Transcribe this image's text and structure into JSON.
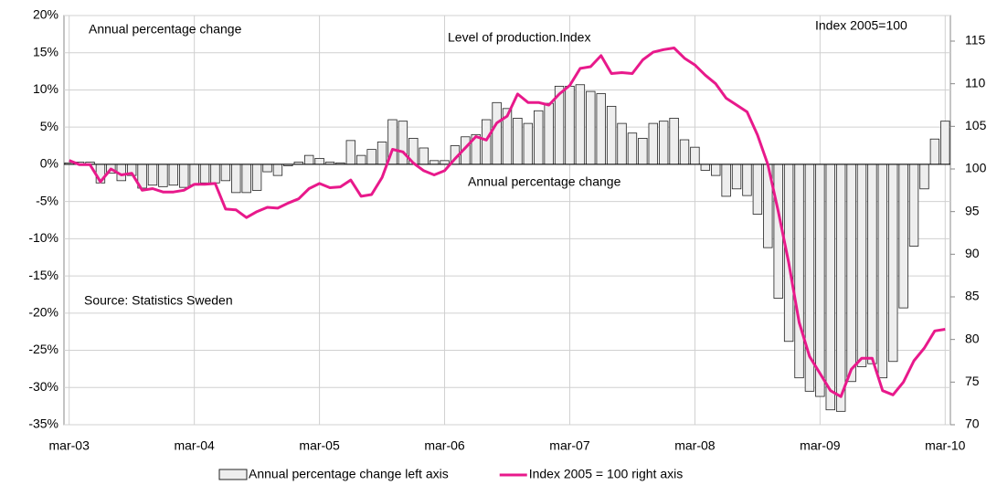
{
  "chart_data": {
    "type": "bar_line",
    "annotations": [
      "Annual percentage change",
      "Level of production.Index",
      "Index 2005=100",
      "Annual percentage change",
      "Source: Statistics Sweden"
    ],
    "categories": [
      "mar-03",
      null,
      null,
      null,
      null,
      null,
      null,
      null,
      null,
      null,
      null,
      null,
      "mar-04",
      null,
      null,
      null,
      null,
      null,
      null,
      null,
      null,
      null,
      null,
      null,
      "mar-05",
      null,
      null,
      null,
      null,
      null,
      null,
      null,
      null,
      null,
      null,
      null,
      "mar-06",
      null,
      null,
      null,
      null,
      null,
      null,
      null,
      null,
      null,
      null,
      null,
      "mar-07",
      null,
      null,
      null,
      null,
      null,
      null,
      null,
      null,
      null,
      null,
      null,
      "mar-08",
      null,
      null,
      null,
      null,
      null,
      null,
      null,
      null,
      null,
      null,
      null,
      "mar-09",
      null,
      null,
      null,
      null,
      null,
      null,
      null,
      null,
      null,
      null,
      null,
      "mar-10"
    ],
    "series": [
      {
        "name": "Annual percentage change left axis",
        "kind": "bar",
        "color": "#eeeeee",
        "axis": "y",
        "values": [
          0.2,
          0.3,
          0.3,
          -2.5,
          -1.2,
          -2.2,
          -1.5,
          -3.2,
          -2.8,
          -3,
          -2.8,
          -3.1,
          -2.8,
          -2.5,
          -2.5,
          -2.2,
          -3.8,
          -3.8,
          -3.5,
          -1,
          -1.5,
          -0.2,
          0.3,
          1.2,
          0.8,
          0.3,
          0.2,
          3.2,
          1.2,
          2,
          3,
          6,
          5.8,
          3.5,
          2.2,
          0.5,
          0.5,
          2.5,
          3.7,
          4,
          6,
          8.3,
          7.5,
          6.2,
          5.5,
          7.2,
          8.2,
          10.5,
          10.5,
          10.7,
          9.8,
          9.5,
          7.8,
          5.5,
          4.2,
          3.5,
          5.5,
          5.8,
          6.2,
          3.3,
          2.3,
          -0.8,
          -1.5,
          -4.3,
          -3.3,
          -4.2,
          -6.7,
          -11.2,
          -18,
          -23.8,
          -28.7,
          -30.5,
          -31.2,
          -33,
          -33.2,
          -29.2,
          -27.2,
          -26.8,
          -28.7,
          -26.5,
          -19.3,
          -11,
          -3.3,
          3.4,
          5.8
        ]
      },
      {
        "name": "Index 2005 = 100 right axis",
        "kind": "line",
        "color": "#e8198b",
        "axis": "y2",
        "values": [
          101,
          100.5,
          100.5,
          98.5,
          100,
          99.3,
          99.5,
          97.5,
          97.7,
          97.3,
          97.3,
          97.5,
          98.2,
          98.2,
          98.3,
          95.3,
          95.2,
          94.3,
          95,
          95.5,
          95.4,
          96,
          96.5,
          97.7,
          98.3,
          97.8,
          97.9,
          98.7,
          96.8,
          97,
          99,
          102.3,
          102,
          100.7,
          99.8,
          99.3,
          99.8,
          101.2,
          102.5,
          103.8,
          103.4,
          105.4,
          106.2,
          108.8,
          107.8,
          107.8,
          107.5,
          108.8,
          109.8,
          111.8,
          112,
          113.3,
          111.2,
          111.3,
          111.2,
          112.8,
          113.7,
          114,
          114.2,
          113,
          112.2,
          111,
          110,
          108.3,
          107.5,
          106.7,
          104,
          100.5,
          95,
          89,
          82,
          78,
          76,
          74,
          73.3,
          76.5,
          77.8,
          77.8,
          74,
          73.5,
          75,
          77.5,
          79,
          81,
          81.2
        ]
      }
    ],
    "ylim": [
      -35,
      20
    ],
    "yticks": [
      {
        "value": -35,
        "label": "-35%"
      },
      {
        "value": -30,
        "label": "-30%"
      },
      {
        "value": -25,
        "label": "-25%"
      },
      {
        "value": -20,
        "label": "-20%"
      },
      {
        "value": -15,
        "label": "-15%"
      },
      {
        "value": -10,
        "label": "-10%"
      },
      {
        "value": -5,
        "label": "-5%"
      },
      {
        "value": 0,
        "label": "0%"
      },
      {
        "value": 5,
        "label": "5%"
      },
      {
        "value": 10,
        "label": "10%"
      },
      {
        "value": 15,
        "label": "15%"
      },
      {
        "value": 20,
        "label": "20%"
      }
    ],
    "y2lim": [
      70,
      118
    ],
    "y2ticks": [
      70,
      75,
      80,
      85,
      90,
      95,
      100,
      105,
      110,
      115
    ],
    "grid": true,
    "legend": "bottom"
  }
}
